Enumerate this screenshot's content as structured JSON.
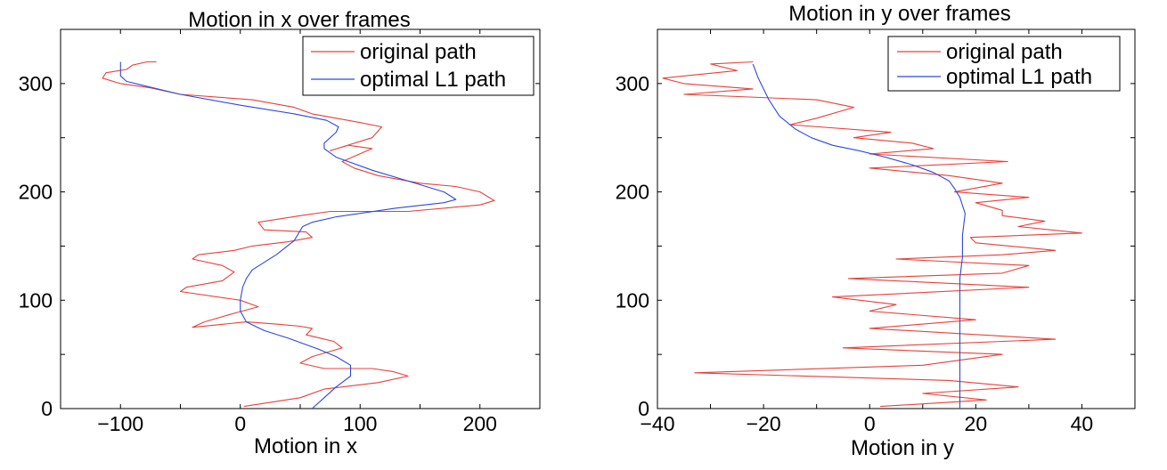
{
  "chart_data": [
    {
      "type": "line",
      "title": "Motion in x over frames",
      "xlabel": "Motion in x",
      "ylabel": "",
      "xlim": [
        -150,
        250
      ],
      "ylim": [
        0,
        350
      ],
      "xticks": [
        -100,
        0,
        100,
        200
      ],
      "xtick_labels": [
        "−100",
        "0",
        "100",
        "200"
      ],
      "yticks": [
        0,
        100,
        200,
        300
      ],
      "ytick_labels": [
        "0",
        "100",
        "200",
        "300"
      ],
      "legend_position": "top-right",
      "series": [
        {
          "name": "original path",
          "color": "#e8403a",
          "x": [
            3,
            50,
            70,
            115,
            140,
            128,
            110,
            70,
            50,
            60,
            85,
            78,
            55,
            60,
            50,
            30,
            5,
            -40,
            -30,
            -5,
            15,
            0,
            -50,
            -45,
            -15,
            -5,
            -15,
            -40,
            -35,
            -5,
            10,
            40,
            60,
            55,
            20,
            15,
            50,
            75,
            140,
            200,
            212,
            200,
            180,
            150,
            115,
            95,
            85,
            110,
            90,
            75,
            110,
            118,
            100,
            80,
            60,
            45,
            10,
            -50,
            -75,
            -100,
            -115,
            -112,
            -95,
            -90,
            -78,
            -70
          ],
          "y": [
            2,
            10,
            18,
            24,
            30,
            34,
            37,
            37,
            42,
            48,
            56,
            62,
            68,
            74,
            76,
            78,
            80,
            75,
            80,
            88,
            94,
            100,
            108,
            112,
            118,
            126,
            132,
            138,
            142,
            146,
            150,
            154,
            158,
            163,
            165,
            172,
            178,
            182,
            182,
            188,
            192,
            200,
            205,
            208,
            215,
            222,
            228,
            240,
            243,
            238,
            250,
            260,
            264,
            268,
            272,
            278,
            285,
            290,
            296,
            300,
            305,
            310,
            313,
            317,
            320,
            320
          ]
        },
        {
          "name": "optimal L1 path",
          "color": "#2c48e0",
          "x": [
            60,
            70,
            80,
            92,
            92,
            80,
            65,
            40,
            20,
            5,
            0,
            0,
            2,
            5,
            10,
            20,
            30,
            45,
            52,
            60,
            80,
            130,
            170,
            180,
            170,
            140,
            110,
            80,
            70,
            70,
            80,
            82,
            72,
            45,
            0,
            -50,
            -80,
            -95,
            -100,
            -100
          ],
          "y": [
            0,
            10,
            20,
            30,
            40,
            48,
            55,
            65,
            72,
            80,
            90,
            100,
            112,
            120,
            128,
            135,
            142,
            155,
            168,
            172,
            177,
            185,
            190,
            193,
            200,
            210,
            220,
            232,
            240,
            245,
            255,
            260,
            266,
            272,
            280,
            290,
            298,
            302,
            307,
            320
          ]
        }
      ]
    },
    {
      "type": "line",
      "title": "Motion in y over frames",
      "xlabel": "Motion in y",
      "ylabel": "",
      "xlim": [
        -40,
        50
      ],
      "ylim": [
        0,
        350
      ],
      "xticks": [
        -40,
        -20,
        0,
        20,
        40
      ],
      "xtick_labels": [
        "−40",
        "−20",
        "0",
        "20",
        "40"
      ],
      "yticks": [
        0,
        100,
        200,
        300
      ],
      "ytick_labels": [
        "0",
        "100",
        "200",
        "300"
      ],
      "legend_position": "top-right",
      "series": [
        {
          "name": "original path",
          "color": "#e8403a",
          "x": [
            2,
            22,
            10,
            28,
            15,
            -33,
            10,
            25,
            -5,
            35,
            0,
            20,
            0,
            5,
            -7,
            30,
            -4,
            25,
            30,
            5,
            25,
            35,
            20,
            19,
            40,
            28,
            33,
            25,
            25,
            20,
            30,
            16,
            25,
            15,
            0,
            26,
            0,
            12,
            8,
            -3,
            4,
            -15,
            -10,
            -3,
            -10,
            -35,
            -22,
            -35,
            -39,
            -25,
            -30,
            -22
          ],
          "y": [
            2,
            8,
            14,
            20,
            26,
            33,
            40,
            50,
            56,
            64,
            74,
            82,
            90,
            96,
            103,
            112,
            120,
            125,
            132,
            138,
            142,
            146,
            153,
            158,
            162,
            168,
            173,
            178,
            183,
            190,
            195,
            200,
            208,
            215,
            222,
            228,
            235,
            240,
            245,
            250,
            255,
            262,
            268,
            278,
            285,
            290,
            295,
            300,
            305,
            312,
            318,
            320
          ]
        },
        {
          "name": "optimal L1 path",
          "color": "#2c48e0",
          "x": [
            17,
            17,
            17,
            17,
            17.5,
            17.5,
            18,
            17,
            16,
            15,
            12,
            8,
            3,
            -2,
            -7,
            -11,
            -14,
            -17,
            -19,
            -20,
            -21,
            -22
          ],
          "y": [
            0,
            50,
            100,
            120,
            140,
            160,
            180,
            195,
            203,
            210,
            218,
            225,
            232,
            238,
            243,
            250,
            258,
            270,
            285,
            295,
            305,
            318
          ]
        }
      ]
    }
  ]
}
